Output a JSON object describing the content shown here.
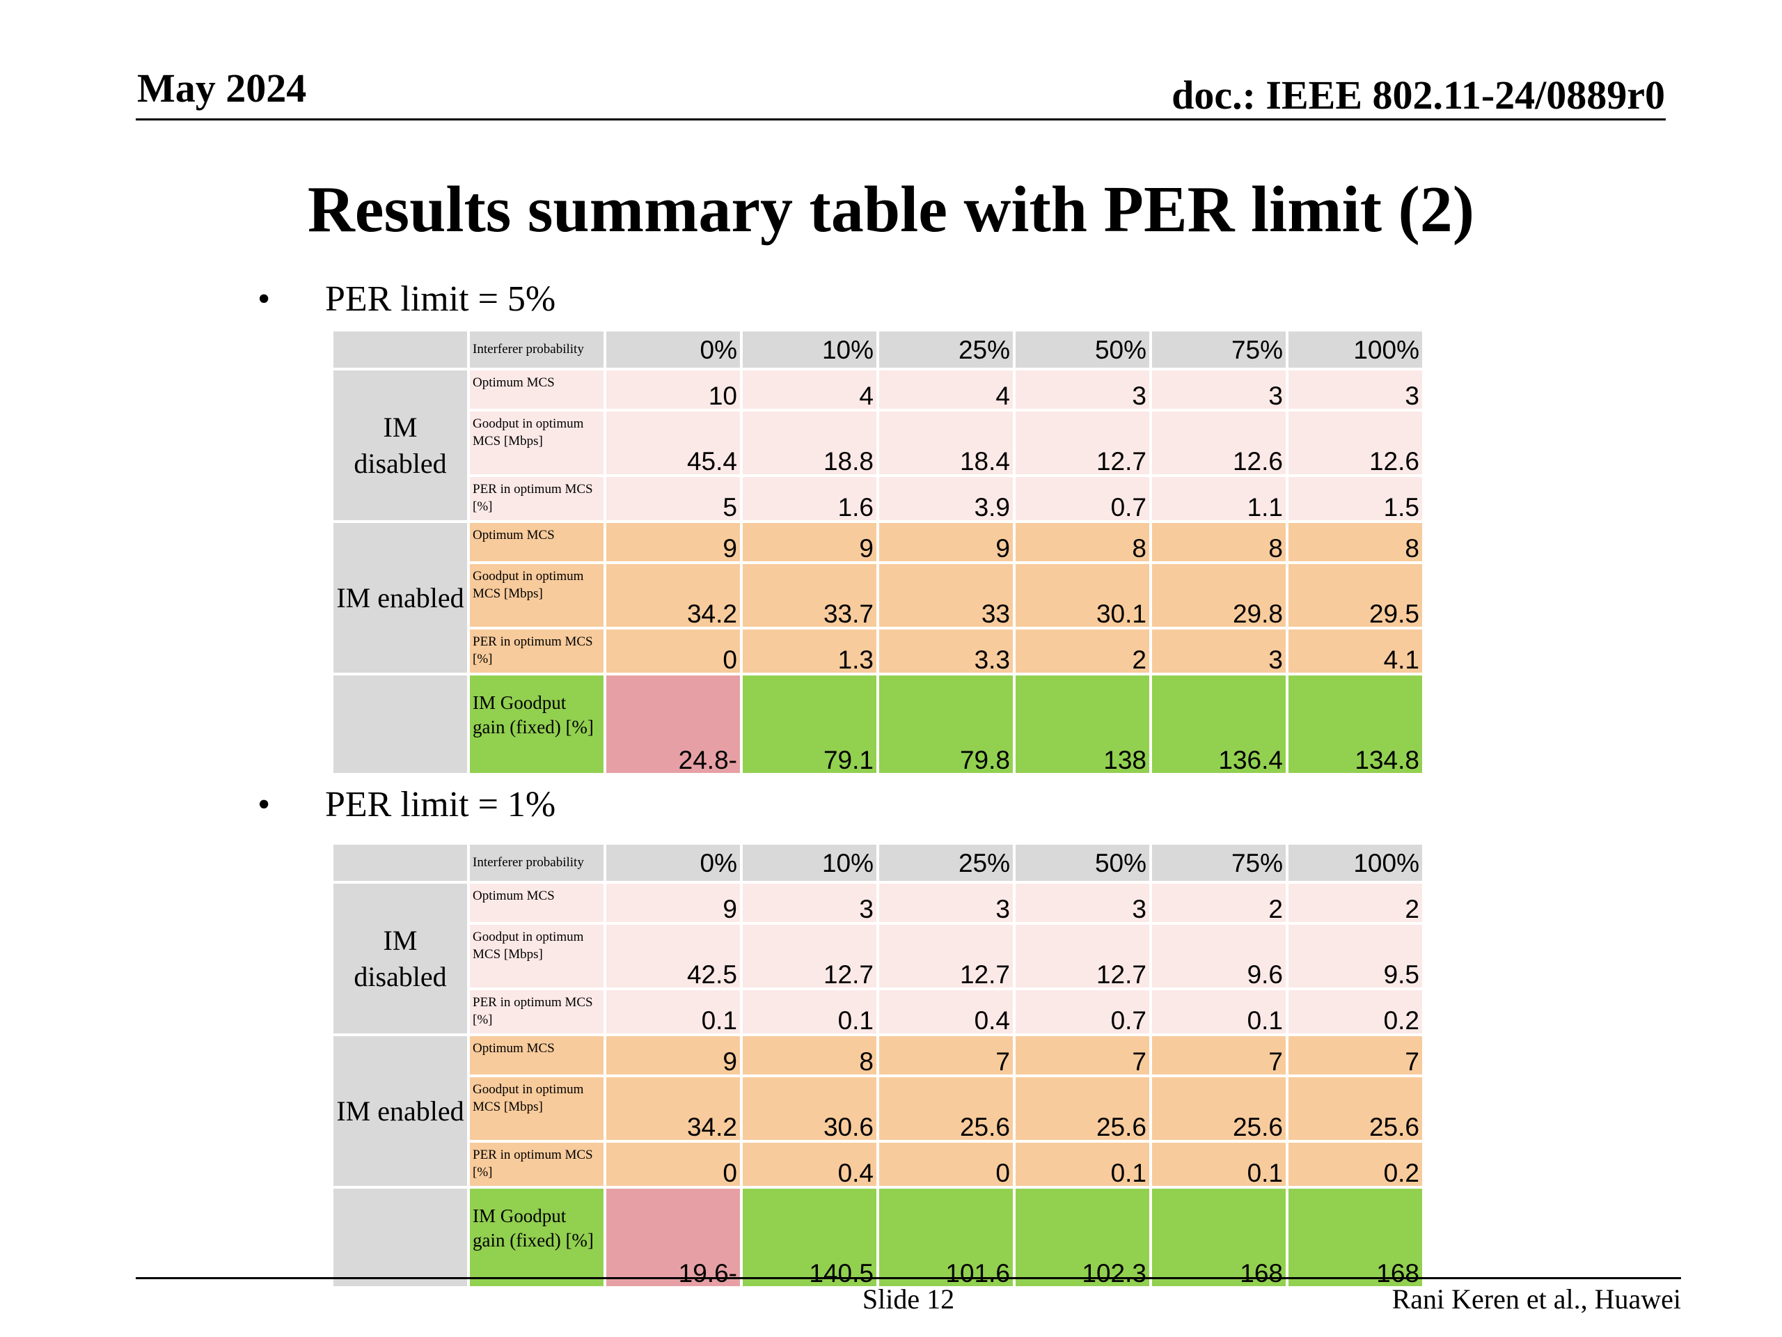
{
  "header": {
    "date": "May 2024",
    "doc": "doc.: IEEE 802.11-24/0889r0"
  },
  "title": "Results summary table with PER limit (2)",
  "bullet_symbol": "•",
  "sections": [
    {
      "bullet": "PER limit = 5%",
      "header_label": "Interferer probability",
      "probabilities": [
        "0%",
        "10%",
        "25%",
        "50%",
        "75%",
        "100%"
      ],
      "groups": [
        {
          "name": "IM disabled",
          "rows": [
            {
              "label": "Optimum MCS",
              "values": [
                "10",
                "4",
                "4",
                "3",
                "3",
                "3"
              ]
            },
            {
              "label": "Goodput in optimum MCS [Mbps]",
              "values": [
                "45.4",
                "18.8",
                "18.4",
                "12.7",
                "12.6",
                "12.6"
              ]
            },
            {
              "label": "PER in optimum MCS [%]",
              "values": [
                "5",
                "1.6",
                "3.9",
                "0.7",
                "1.1",
                "1.5"
              ]
            }
          ]
        },
        {
          "name": "IM enabled",
          "rows": [
            {
              "label": "Optimum MCS",
              "values": [
                "9",
                "9",
                "9",
                "8",
                "8",
                "8"
              ]
            },
            {
              "label": "Goodput in optimum MCS [Mbps]",
              "values": [
                "34.2",
                "33.7",
                "33",
                "30.1",
                "29.8",
                "29.5"
              ]
            },
            {
              "label": "PER in optimum MCS [%]",
              "values": [
                "0",
                "1.3",
                "3.3",
                "2",
                "3",
                "4.1"
              ]
            }
          ]
        }
      ],
      "gain": {
        "label": "IM Goodput gain (fixed) [%]",
        "values": [
          "24.8-",
          "79.1",
          "79.8",
          "138",
          "136.4",
          "134.8"
        ]
      }
    },
    {
      "bullet": "PER limit = 1%",
      "header_label": "Interferer probability",
      "probabilities": [
        "0%",
        "10%",
        "25%",
        "50%",
        "75%",
        "100%"
      ],
      "groups": [
        {
          "name": "IM disabled",
          "rows": [
            {
              "label": "Optimum MCS",
              "values": [
                "9",
                "3",
                "3",
                "3",
                "2",
                "2"
              ]
            },
            {
              "label": "Goodput in optimum MCS [Mbps]",
              "values": [
                "42.5",
                "12.7",
                "12.7",
                "12.7",
                "9.6",
                "9.5"
              ]
            },
            {
              "label": "PER in optimum MCS [%]",
              "values": [
                "0.1",
                "0.1",
                "0.4",
                "0.7",
                "0.1",
                "0.2"
              ]
            }
          ]
        },
        {
          "name": "IM enabled",
          "rows": [
            {
              "label": "Optimum MCS",
              "values": [
                "9",
                "8",
                "7",
                "7",
                "7",
                "7"
              ]
            },
            {
              "label": "Goodput in optimum MCS [Mbps]",
              "values": [
                "34.2",
                "30.6",
                "25.6",
                "25.6",
                "25.6",
                "25.6"
              ]
            },
            {
              "label": "PER in optimum MCS [%]",
              "values": [
                "0",
                "0.4",
                "0",
                "0.1",
                "0.1",
                "0.2"
              ]
            }
          ]
        }
      ],
      "gain": {
        "label": "IM Goodput gain (fixed) [%]",
        "values": [
          "19.6-",
          "140.5",
          "101.6",
          "102.3",
          "168",
          "168"
        ]
      }
    }
  ],
  "footer": {
    "slide": "Slide 12",
    "author": "Rani Keren et al., Huawei"
  },
  "colors": {
    "header_gray": "#d9d9d9",
    "im_disabled_pink": "#fbe9e7",
    "im_enabled_orange": "#f8cb9c",
    "gain_positive_green": "#92d050",
    "gain_negative_red": "#e6a0a5"
  }
}
